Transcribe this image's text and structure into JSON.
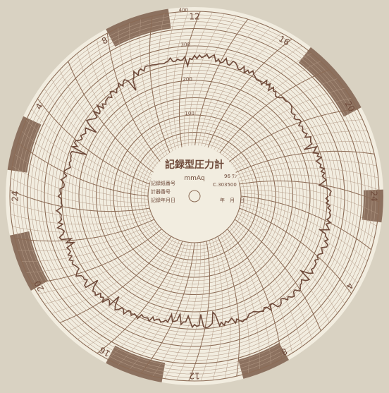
{
  "chart": {
    "title": "記録型圧力計",
    "unit": "mmAq",
    "model": "96 ﾜﾝ",
    "part_no": "C.303500",
    "fields": [
      "記録紙番号",
      "計器番号",
      "記録年月日"
    ],
    "date_label": "年　月　日",
    "hour_labels": [
      "12",
      "16",
      "20",
      "24",
      "4",
      "8",
      "12",
      "16",
      "20",
      "24",
      "4",
      "8"
    ],
    "scale_labels": [
      "100",
      "200",
      "300",
      "400"
    ],
    "colors": {
      "paper": "#f2ede0",
      "grid": "#8b6b55",
      "grid_light": "#b39a86",
      "band": "#7a5a48",
      "trace": "#6e4a3a",
      "background": "#d9d2c2"
    }
  }
}
